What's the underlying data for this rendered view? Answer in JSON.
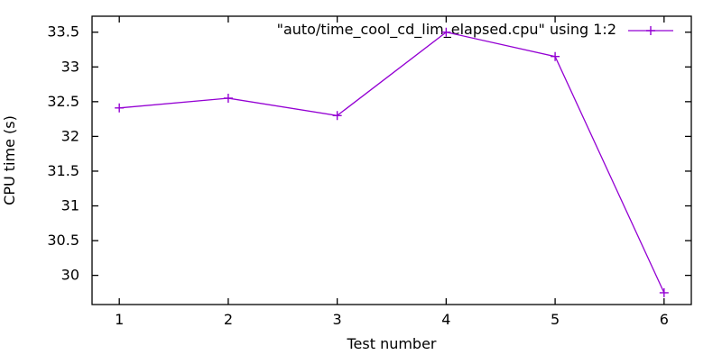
{
  "chart_data": {
    "type": "line",
    "title": "",
    "xlabel": "Test number",
    "ylabel": "CPU time (s)",
    "x": [
      1,
      2,
      3,
      4,
      5,
      6
    ],
    "series": [
      {
        "name": "\"auto/time_cool_cd_lim_elapsed.cpu\" using 1:2",
        "values": [
          32.41,
          32.55,
          32.3,
          33.5,
          33.15,
          29.75
        ],
        "color": "#9400d3",
        "marker": "plus"
      }
    ],
    "x_ticks": [
      1,
      2,
      3,
      4,
      5,
      6
    ],
    "x_tick_labels": [
      "1",
      "2",
      "3",
      "4",
      "5",
      "6"
    ],
    "y_ticks": [
      30,
      30.5,
      31,
      31.5,
      32,
      32.5,
      33,
      33.5
    ],
    "y_tick_labels": [
      "30",
      "30.5",
      "31",
      "31.5",
      "32",
      "32.5",
      "33",
      "33.5"
    ],
    "xlim": [
      0.75,
      6.25
    ],
    "ylim": [
      29.58,
      33.73
    ],
    "grid": false,
    "legend_position": "top-right",
    "background_color": "#ffffff",
    "border_color": "#000000",
    "text_color": "#000000"
  }
}
